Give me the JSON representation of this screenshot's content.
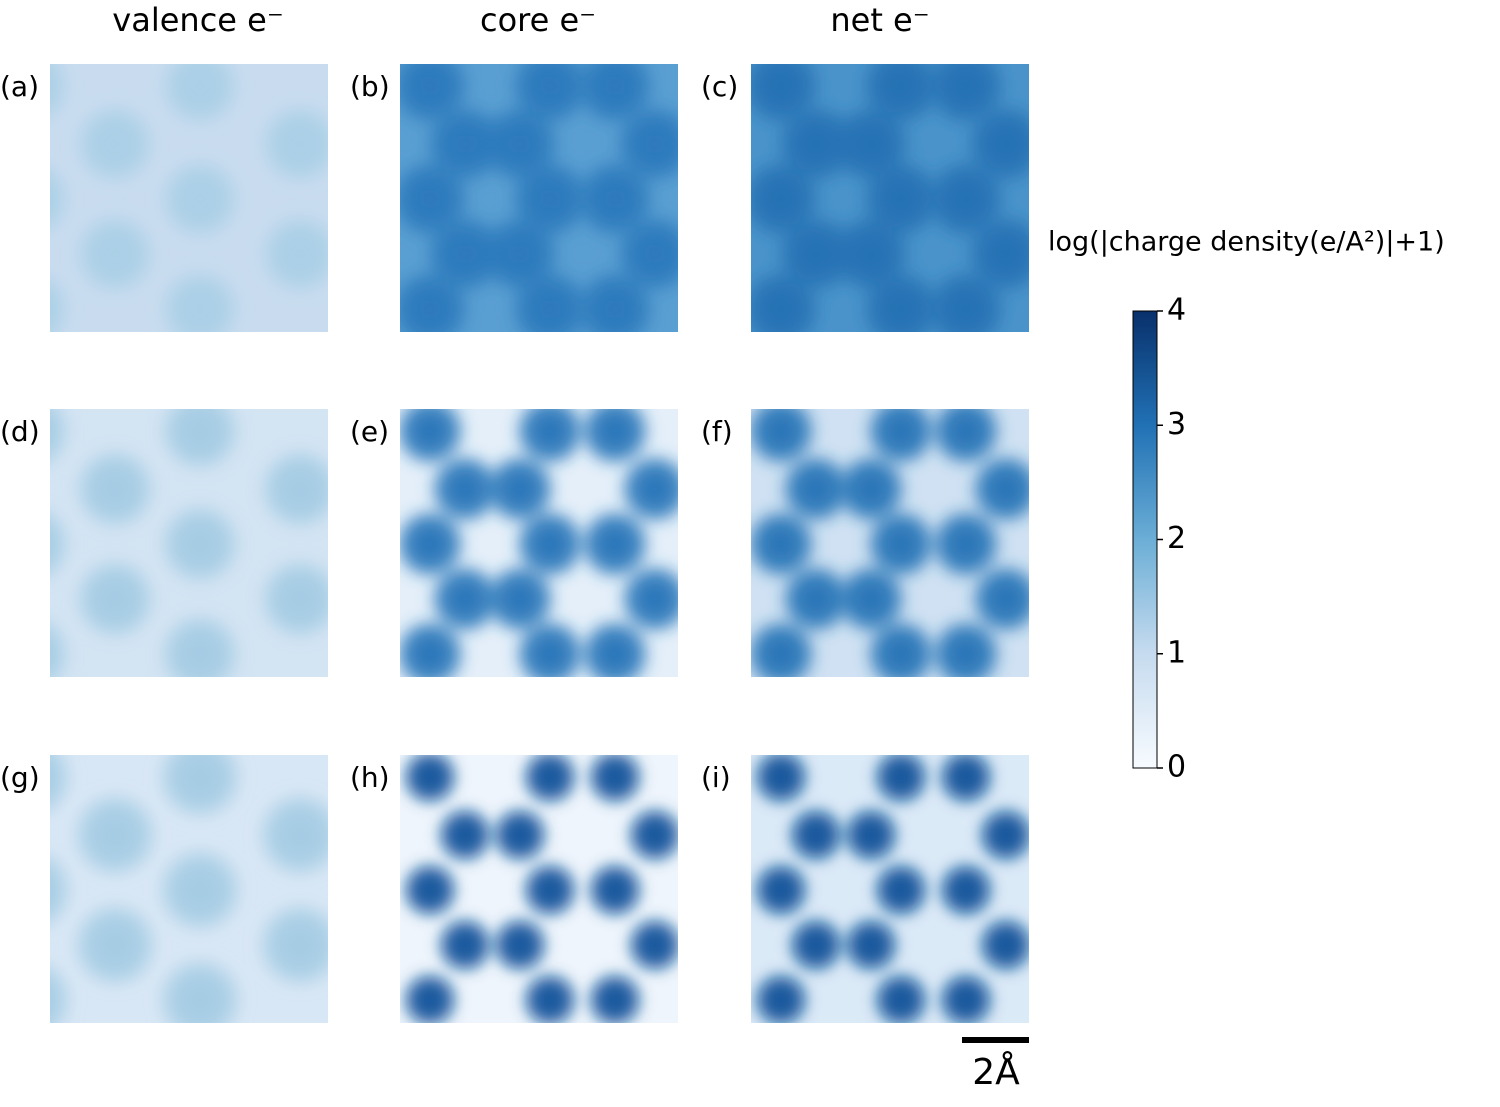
{
  "column_titles": [
    "valence e⁻",
    "core e⁻",
    "net e⁻"
  ],
  "panel_labels": [
    "(a)",
    "(b)",
    "(c)",
    "(d)",
    "(e)",
    "(f)",
    "(g)",
    "(h)",
    "(i)"
  ],
  "colorbar": {
    "label": "log(|charge density(e/A²)|+1)",
    "lim": [
      0,
      4
    ],
    "ticks": [
      0,
      1,
      2,
      3,
      4
    ]
  },
  "scale_bar": {
    "label": "2Å"
  }
}
